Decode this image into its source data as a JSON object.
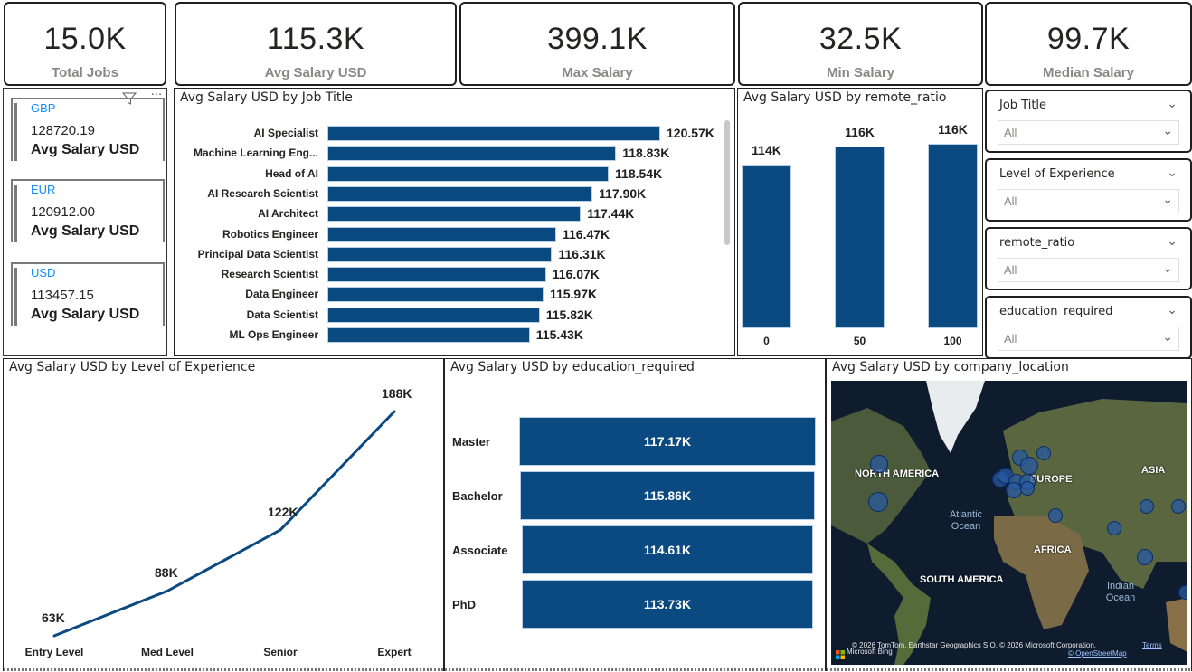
{
  "kpis": [
    {
      "value": "15.0K",
      "label": "Total Jobs"
    },
    {
      "value": "115.3K",
      "label": "Avg Salary USD"
    },
    {
      "value": "399.1K",
      "label": "Max Salary"
    },
    {
      "value": "32.5K",
      "label": "Min Salary"
    },
    {
      "value": "99.7K",
      "label": "Median Salary"
    }
  ],
  "currency_card": {
    "header_icons": [
      "filter-icon",
      "more-options-icon"
    ],
    "more_label": "···",
    "rows": [
      {
        "category": "GBP",
        "value": "128720.19",
        "label": "Avg Salary USD"
      },
      {
        "category": "EUR",
        "value": "120912.00",
        "label": "Avg Salary USD"
      },
      {
        "category": "USD",
        "value": "113457.15",
        "label": "Avg Salary USD"
      }
    ]
  },
  "colors": {
    "bar": "#0b4a80",
    "line": "#0b4a80",
    "category_text": "#118dff",
    "kpi_label": "#8a8886"
  },
  "slicers": [
    {
      "title": "Job Title",
      "value": "All"
    },
    {
      "title": "Level of Experience",
      "value": "All"
    },
    {
      "title": "remote_ratio",
      "value": "All"
    },
    {
      "title": "education_required",
      "value": "All"
    }
  ],
  "chart_data": [
    {
      "id": "job_title",
      "type": "bar",
      "orientation": "horizontal",
      "title": "Avg Salary USD by Job Title",
      "categories": [
        "AI Specialist",
        "Machine Learning Eng...",
        "Head of AI",
        "AI Research Scientist",
        "AI Architect",
        "Robotics Engineer",
        "Principal Data Scientist",
        "Research Scientist",
        "Data Engineer",
        "Data Scientist",
        "ML Ops Engineer"
      ],
      "values": [
        120570,
        118830,
        118540,
        117900,
        117440,
        116470,
        116310,
        116070,
        115970,
        115820,
        115430
      ],
      "data_labels": [
        "120.57K",
        "118.83K",
        "118.54K",
        "117.90K",
        "117.44K",
        "116.47K",
        "116.31K",
        "116.07K",
        "115.97K",
        "115.82K",
        "115.43K"
      ],
      "xlabel": "",
      "ylabel": "",
      "xlim": [
        0,
        120570
      ],
      "grid": false,
      "scrollable": true
    },
    {
      "id": "remote_ratio",
      "type": "bar",
      "orientation": "vertical",
      "title": "Avg Salary USD by remote_ratio",
      "categories": [
        "0",
        "50",
        "100"
      ],
      "values": [
        114000,
        116000,
        116300
      ],
      "data_labels": [
        "114K",
        "116K",
        "116K"
      ],
      "ylim": [
        0,
        116300
      ],
      "grid": false
    },
    {
      "id": "level_of_experience",
      "type": "line",
      "title": "Avg Salary USD by Level of Experience",
      "categories": [
        "Entry Level",
        "Med Level",
        "Senior",
        "Expert"
      ],
      "values": [
        63000,
        88000,
        122000,
        188000
      ],
      "data_labels": [
        "63K",
        "88K",
        "122K",
        "188K"
      ],
      "ylim": [
        63000,
        188000
      ],
      "grid": false
    },
    {
      "id": "education_required",
      "type": "bar",
      "orientation": "horizontal",
      "title": "Avg Salary USD by education_required",
      "categories": [
        "Master",
        "Bachelor",
        "Associate",
        "PhD"
      ],
      "values": [
        117170,
        115860,
        114610,
        113730
      ],
      "data_labels": [
        "117.17K",
        "115.86K",
        "114.61K",
        "113.73K"
      ],
      "grid": false
    }
  ],
  "map": {
    "title": "Avg Salary USD by company_location",
    "continent_labels": [
      "NORTH AMERICA",
      "EUROPE",
      "ASIA",
      "AFRICA",
      "SOUTH AMERICA"
    ],
    "ocean_labels": [
      "Atlantic Ocean",
      "Indian Ocean"
    ],
    "attribution": "© 2026 TomTom, Earthstar Geographics SIO, © 2026 Microsoft Corporation,",
    "terms_link": "Terms",
    "osm_link": "© OpenStreetMap",
    "provider": "Microsoft Bing"
  }
}
